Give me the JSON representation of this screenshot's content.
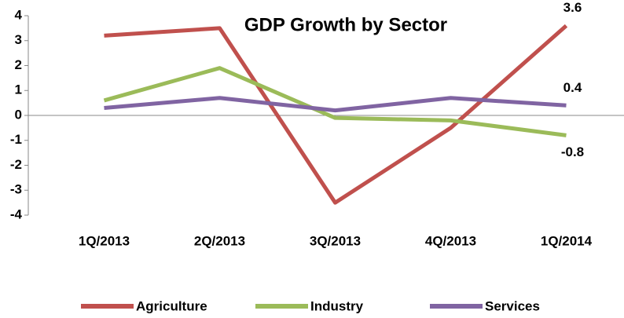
{
  "chart_data": {
    "type": "line",
    "title": "GDP Growth by Sector",
    "categories": [
      "1Q/2013",
      "2Q/2013",
      "3Q/2013",
      "4Q/2013",
      "1Q/2014"
    ],
    "series": [
      {
        "name": "Agriculture",
        "color": "#c0504d",
        "values": [
          3.2,
          3.5,
          -3.5,
          -0.5,
          3.6
        ]
      },
      {
        "name": "Industry",
        "color": "#9bbb59",
        "values": [
          0.6,
          1.9,
          -0.1,
          -0.2,
          -0.8
        ]
      },
      {
        "name": "Services",
        "color": "#8064a2",
        "values": [
          0.3,
          0.7,
          0.2,
          0.7,
          0.4
        ]
      }
    ],
    "ylim": [
      -4,
      4
    ],
    "yticks": [
      -4,
      -3,
      -2,
      -1,
      0,
      1,
      2,
      3,
      4
    ],
    "data_labels": "last",
    "legend": "bottom"
  }
}
